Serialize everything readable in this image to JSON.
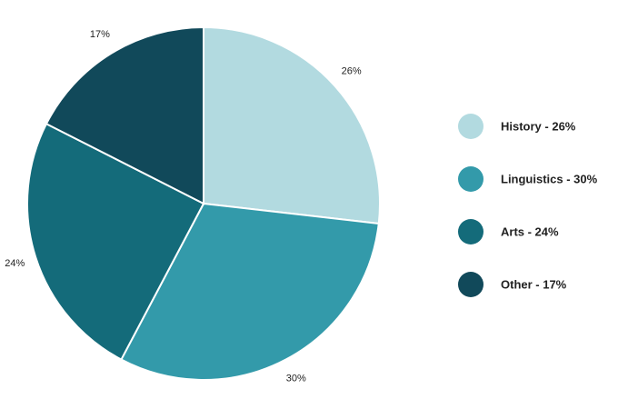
{
  "chart_data": {
    "type": "pie",
    "categories": [
      "History - 26%",
      "Linguistics - 30%",
      "Arts - 24%",
      "Other - 17%"
    ],
    "values": [
      26,
      30,
      24,
      17
    ],
    "value_labels": [
      "26%",
      "30%",
      "24%",
      "17%"
    ],
    "colors": [
      "#b2dae0",
      "#339aaa",
      "#146b7a",
      "#11495a"
    ],
    "legend": "right"
  }
}
